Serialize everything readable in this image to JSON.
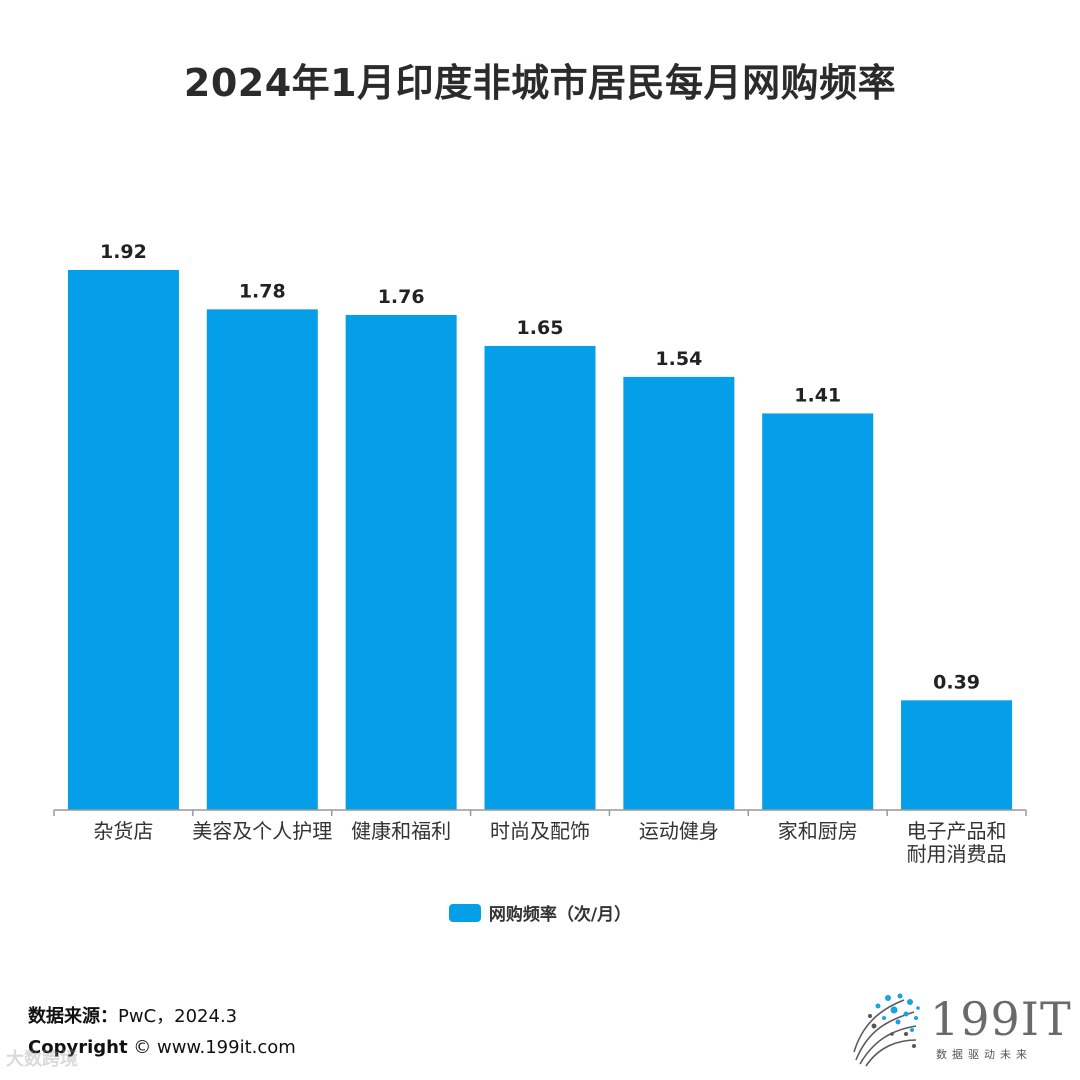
{
  "title": "2024年1月印度非城市居民每月网购频率",
  "colors": {
    "bar": "#049FE8",
    "axis": "#999999"
  },
  "chart_data": {
    "type": "bar",
    "title": "2024年1月印度非城市居民每月网购频率",
    "categories": [
      "杂货店",
      "美容及个人护理",
      "健康和福利",
      "时尚及配饰",
      "运动健身",
      "家和厨房",
      "电子产品和耐用消费品"
    ],
    "category_lines": [
      [
        "杂货店"
      ],
      [
        "美容及个人护理"
      ],
      [
        "健康和福利"
      ],
      [
        "时尚及配饰"
      ],
      [
        "运动健身"
      ],
      [
        "家和厨房"
      ],
      [
        "电子产品和",
        "耐用消费品"
      ]
    ],
    "series": [
      {
        "name": "网购频率（次/月）",
        "values": [
          1.92,
          1.78,
          1.76,
          1.65,
          1.54,
          1.41,
          0.39
        ]
      }
    ],
    "ylim": [
      0,
      1.92
    ],
    "grid": false,
    "legend": "bottom-center",
    "data_labels": true
  },
  "legend": {
    "label": "网购频率（次/月）"
  },
  "footer": {
    "source_key": "数据来源：",
    "source_value": "PwC，2024.3",
    "copyright_key": "Copyright",
    "copyright_value": " © www.199it.com"
  },
  "logo": {
    "text": "199IT",
    "subtitle": "数据驱动未来",
    "icon": "dot-sphere-logo-icon"
  },
  "watermark": "大数跨境"
}
